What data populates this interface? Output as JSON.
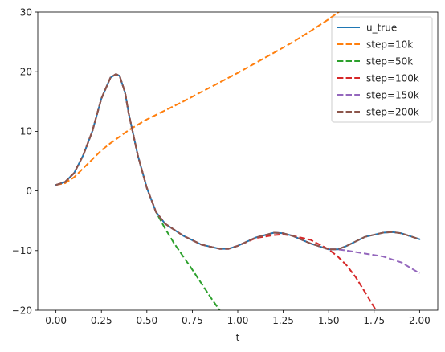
{
  "chart_data": {
    "type": "line",
    "title": "",
    "xlabel": "t",
    "ylabel": "",
    "xlim": [
      -0.1,
      2.1
    ],
    "ylim": [
      -20,
      30
    ],
    "xticks": [
      0.0,
      0.25,
      0.5,
      0.75,
      1.0,
      1.25,
      1.5,
      1.75,
      2.0
    ],
    "xtick_labels": [
      "0.00",
      "0.25",
      "0.50",
      "0.75",
      "1.00",
      "1.25",
      "1.50",
      "1.75",
      "2.00"
    ],
    "yticks": [
      -20,
      -10,
      0,
      10,
      20,
      30
    ],
    "ytick_labels": [
      "−20",
      "−10",
      "0",
      "10",
      "20",
      "30"
    ],
    "grid": false,
    "legend_position": "top-right",
    "series": [
      {
        "name": "u_true",
        "color": "#1f77b4",
        "style": "solid",
        "x": [
          0.0,
          0.05,
          0.1,
          0.15,
          0.2,
          0.25,
          0.3,
          0.33,
          0.35,
          0.38,
          0.4,
          0.45,
          0.5,
          0.55,
          0.6,
          0.7,
          0.8,
          0.9,
          0.95,
          1.0,
          1.1,
          1.2,
          1.25,
          1.3,
          1.4,
          1.5,
          1.55,
          1.6,
          1.7,
          1.8,
          1.85,
          1.9,
          2.0
        ],
        "y": [
          1.0,
          1.5,
          3.0,
          6.0,
          10.0,
          15.5,
          19.0,
          19.6,
          19.3,
          16.5,
          13.0,
          6.0,
          0.5,
          -3.5,
          -5.5,
          -7.5,
          -9.0,
          -9.7,
          -9.7,
          -9.2,
          -7.8,
          -7.0,
          -7.1,
          -7.5,
          -8.8,
          -9.8,
          -9.8,
          -9.2,
          -7.7,
          -7.0,
          -6.9,
          -7.1,
          -8.1
        ]
      },
      {
        "name": "step=10k",
        "color": "#ff7f0e",
        "style": "dashed",
        "x": [
          0.0,
          0.05,
          0.1,
          0.15,
          0.2,
          0.25,
          0.3,
          0.4,
          0.5,
          0.6,
          0.7,
          0.8,
          0.9,
          1.0,
          1.1,
          1.2,
          1.3,
          1.4,
          1.5,
          1.55,
          1.6
        ],
        "y": [
          1.0,
          1.3,
          2.3,
          3.8,
          5.3,
          6.8,
          8.0,
          10.2,
          12.0,
          13.5,
          15.0,
          16.6,
          18.2,
          19.8,
          21.5,
          23.2,
          24.9,
          26.8,
          28.8,
          29.9,
          31.0
        ]
      },
      {
        "name": "step=50k",
        "color": "#2ca02c",
        "style": "dashed",
        "x": [
          0.0,
          0.05,
          0.1,
          0.15,
          0.2,
          0.25,
          0.3,
          0.33,
          0.35,
          0.38,
          0.4,
          0.45,
          0.5,
          0.55,
          0.6,
          0.65,
          0.7,
          0.75,
          0.8,
          0.85,
          0.9,
          0.92
        ],
        "y": [
          1.0,
          1.5,
          3.0,
          6.0,
          10.0,
          15.5,
          19.0,
          19.6,
          19.3,
          16.5,
          13.0,
          6.0,
          0.5,
          -3.5,
          -6.3,
          -8.8,
          -11.0,
          -13.2,
          -15.5,
          -17.8,
          -20.0,
          -21.0
        ]
      },
      {
        "name": "step=100k",
        "color": "#d62728",
        "style": "dashed",
        "x": [
          0.0,
          0.05,
          0.1,
          0.15,
          0.2,
          0.25,
          0.3,
          0.33,
          0.35,
          0.38,
          0.4,
          0.45,
          0.5,
          0.55,
          0.6,
          0.7,
          0.8,
          0.9,
          0.95,
          1.0,
          1.1,
          1.2,
          1.25,
          1.3,
          1.4,
          1.5,
          1.55,
          1.6,
          1.65,
          1.7,
          1.75,
          1.77
        ],
        "y": [
          1.0,
          1.5,
          3.0,
          6.0,
          10.0,
          15.5,
          19.0,
          19.6,
          19.3,
          16.5,
          13.0,
          6.0,
          0.5,
          -3.5,
          -5.5,
          -7.5,
          -9.0,
          -9.7,
          -9.7,
          -9.2,
          -7.9,
          -7.4,
          -7.3,
          -7.5,
          -8.2,
          -9.8,
          -11.0,
          -12.5,
          -14.5,
          -17.0,
          -19.5,
          -20.5
        ]
      },
      {
        "name": "step=150k",
        "color": "#9467bd",
        "style": "dashed",
        "x": [
          0.0,
          0.05,
          0.1,
          0.15,
          0.2,
          0.25,
          0.3,
          0.33,
          0.35,
          0.38,
          0.4,
          0.45,
          0.5,
          0.55,
          0.6,
          0.7,
          0.8,
          0.9,
          0.95,
          1.0,
          1.1,
          1.2,
          1.25,
          1.3,
          1.4,
          1.5,
          1.55,
          1.6,
          1.7,
          1.8,
          1.9,
          2.0
        ],
        "y": [
          1.0,
          1.5,
          3.0,
          6.0,
          10.0,
          15.5,
          19.0,
          19.6,
          19.3,
          16.5,
          13.0,
          6.0,
          0.5,
          -3.5,
          -5.5,
          -7.5,
          -9.0,
          -9.7,
          -9.7,
          -9.2,
          -7.8,
          -7.0,
          -7.1,
          -7.5,
          -8.8,
          -9.8,
          -9.8,
          -10.0,
          -10.5,
          -11.0,
          -12.0,
          -13.8
        ]
      },
      {
        "name": "step=200k",
        "color": "#8c564b",
        "style": "dashed",
        "x": [
          0.0,
          0.05,
          0.1,
          0.15,
          0.2,
          0.25,
          0.3,
          0.33,
          0.35,
          0.38,
          0.4,
          0.45,
          0.5,
          0.55,
          0.6,
          0.7,
          0.8,
          0.9,
          0.95,
          1.0,
          1.1,
          1.2,
          1.25,
          1.3,
          1.4,
          1.5,
          1.55,
          1.6,
          1.7,
          1.8,
          1.85,
          1.9,
          2.0
        ],
        "y": [
          1.0,
          1.5,
          3.0,
          6.0,
          10.0,
          15.5,
          19.0,
          19.6,
          19.3,
          16.5,
          13.0,
          6.0,
          0.5,
          -3.5,
          -5.5,
          -7.5,
          -9.0,
          -9.7,
          -9.7,
          -9.2,
          -7.8,
          -7.0,
          -7.1,
          -7.5,
          -8.8,
          -9.8,
          -9.8,
          -9.2,
          -7.7,
          -7.0,
          -6.9,
          -7.1,
          -8.1
        ]
      }
    ]
  }
}
